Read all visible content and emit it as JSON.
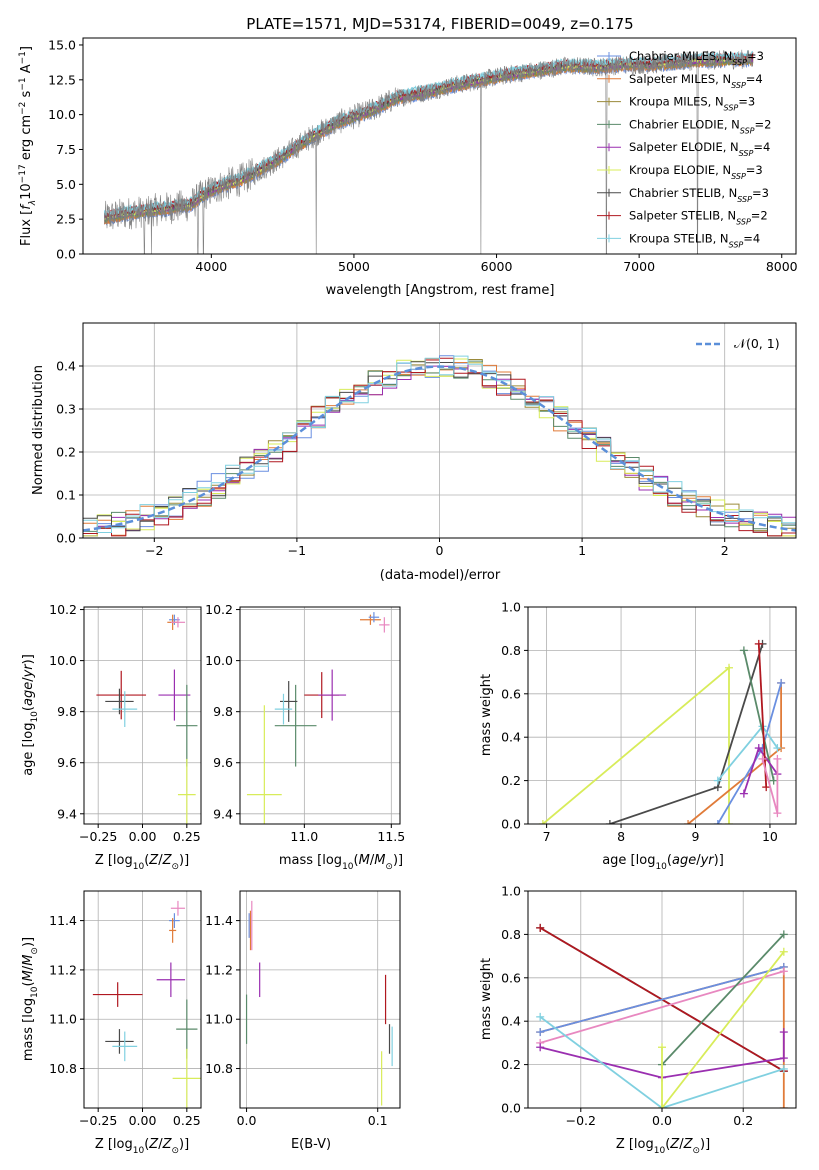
{
  "title": "PLATE=1571, MJD=53174, FIBERID=0049, z=0.175",
  "colors": {
    "Chabrier MILES": "#6a8fe0",
    "Salpeter MILES": "#e07b39",
    "Kroupa MILES": "#9a8a3a",
    "Chabrier ELODIE": "#5a8a6a",
    "Salpeter ELODIE": "#9a2fb0",
    "Kroupa ELODIE": "#d8ec5a",
    "Chabrier STELIB": "#4a4a4a",
    "Salpeter STELIB": "#b01820",
    "Kroupa STELIB": "#80d0e0",
    "pink": "#e888c0",
    "observed": "#808080",
    "normal": "#5b8fd9",
    "grid": "#b0b0b0"
  },
  "legend_spectrum": [
    {
      "pre": "Chabrier MILES, N",
      "sub": "SSP",
      "post": "=3"
    },
    {
      "pre": "Salpeter MILES, N",
      "sub": "SSP",
      "post": "=4"
    },
    {
      "pre": "Kroupa MILES, N",
      "sub": "SSP",
      "post": "=3"
    },
    {
      "pre": "Chabrier ELODIE, N",
      "sub": "SSP",
      "post": "=2"
    },
    {
      "pre": "Salpeter ELODIE, N",
      "sub": "SSP",
      "post": "=4"
    },
    {
      "pre": "Kroupa ELODIE, N",
      "sub": "SSP",
      "post": "=3"
    },
    {
      "pre": "Chabrier STELIB, N",
      "sub": "SSP",
      "post": "=3"
    },
    {
      "pre": "Salpeter STELIB, N",
      "sub": "SSP",
      "post": "=2"
    },
    {
      "pre": "Kroupa STELIB, N",
      "sub": "SSP",
      "post": "=4"
    }
  ],
  "legend_normal": "𝒩(0, 1)",
  "chart_data": [
    {
      "id": "spectrum",
      "type": "line",
      "xlabel": "wavelength [Angstrom, rest frame]",
      "ylabel": "Flux [f_λ 10^-17 erg cm^-2 s^-1 A^-1]",
      "xlim": [
        3100,
        8100
      ],
      "ylim": [
        0,
        15.5
      ],
      "xticks": [
        4000,
        5000,
        6000,
        7000,
        8000
      ],
      "yticks": [
        0.0,
        2.5,
        5.0,
        7.5,
        10.0,
        12.5,
        15.0
      ],
      "ytick_labels": [
        "0.0",
        "2.5",
        "5.0",
        "7.5",
        "10.0",
        "12.5",
        "15.0"
      ],
      "x_range": [
        3250,
        7800
      ],
      "continuum": [
        [
          3250,
          2.6
        ],
        [
          3400,
          2.9
        ],
        [
          3550,
          3.1
        ],
        [
          3700,
          3.3
        ],
        [
          3850,
          3.5
        ],
        [
          3950,
          4.3
        ],
        [
          4050,
          4.8
        ],
        [
          4200,
          5.3
        ],
        [
          4300,
          5.8
        ],
        [
          4500,
          7.0
        ],
        [
          4700,
          8.4
        ],
        [
          4900,
          9.5
        ],
        [
          5100,
          10.2
        ],
        [
          5300,
          11.2
        ],
        [
          5500,
          11.6
        ],
        [
          5700,
          12.1
        ],
        [
          5900,
          12.5
        ],
        [
          6100,
          12.9
        ],
        [
          6300,
          13.2
        ],
        [
          6500,
          13.5
        ],
        [
          6700,
          13.4
        ],
        [
          6900,
          13.6
        ],
        [
          7100,
          13.6
        ],
        [
          7300,
          13.8
        ],
        [
          7500,
          13.9
        ],
        [
          7800,
          14.0
        ]
      ],
      "deep_lines": [
        3530,
        3580,
        3905,
        3945,
        4735,
        5890,
        6770,
        7410
      ],
      "series": [
        "Chabrier MILES",
        "Salpeter MILES",
        "Kroupa MILES",
        "Chabrier ELODIE",
        "Salpeter ELODIE",
        "Kroupa ELODIE",
        "Chabrier STELIB",
        "Salpeter STELIB",
        "Kroupa STELIB"
      ]
    },
    {
      "id": "residual_hist",
      "type": "line",
      "xlabel": "(data-model)/error",
      "ylabel": "Normed distribution",
      "xlim": [
        -2.5,
        2.5
      ],
      "ylim": [
        0,
        0.5
      ],
      "xticks": [
        -2,
        -1,
        0,
        1,
        2
      ],
      "xtick_labels": [
        "−2",
        "−1",
        "0",
        "1",
        "2"
      ],
      "yticks": [
        0.0,
        0.1,
        0.2,
        0.3,
        0.4
      ],
      "ytick_labels": [
        "0.0",
        "0.1",
        "0.2",
        "0.3",
        "0.4"
      ],
      "bin_width": 0.1,
      "reference": "normal(0,1)"
    },
    {
      "id": "age_vs_Z",
      "type": "scatter",
      "xlabel": "Z [log10(Z/Z⊙)]",
      "ylabel": "age [log10(age/yr)]",
      "xlim": [
        -0.33,
        0.33
      ],
      "ylim": [
        9.36,
        10.21
      ],
      "xticks": [
        -0.25,
        0.0,
        0.25
      ],
      "xtick_labels": [
        "−0.25",
        "0.00",
        "0.25"
      ],
      "yticks": [
        9.4,
        9.6,
        9.8,
        10.0,
        10.2
      ],
      "ytick_labels": [
        "9.4",
        "9.6",
        "9.8",
        "10.0",
        "10.2"
      ],
      "points": [
        {
          "x": -0.12,
          "y": 9.865,
          "xerr": 0.14,
          "yerr": 0.095,
          "c": "Salpeter STELIB"
        },
        {
          "x": -0.13,
          "y": 9.84,
          "xerr": 0.08,
          "yerr": 0.05,
          "c": "Chabrier STELIB"
        },
        {
          "x": -0.1,
          "y": 9.81,
          "xerr": 0.07,
          "yerr": 0.07,
          "c": "Kroupa STELIB"
        },
        {
          "x": 0.18,
          "y": 9.865,
          "xerr": 0.09,
          "yerr": 0.1,
          "c": "Salpeter ELODIE"
        },
        {
          "x": 0.25,
          "y": 9.745,
          "xerr": 0.06,
          "yerr": 0.16,
          "c": "Chabrier ELODIE"
        },
        {
          "x": 0.25,
          "y": 9.475,
          "xerr": 0.05,
          "yerr": 0.14,
          "c": "Kroupa ELODIE"
        },
        {
          "x": 0.18,
          "y": 10.16,
          "xerr": 0.03,
          "yerr": 0.02,
          "c": "Chabrier MILES"
        },
        {
          "x": 0.17,
          "y": 10.15,
          "xerr": 0.03,
          "yerr": 0.03,
          "c": "Salpeter MILES"
        },
        {
          "x": 0.2,
          "y": 10.15,
          "xerr": 0.04,
          "yerr": 0.02,
          "c": "pink"
        }
      ]
    },
    {
      "id": "age_vs_mass",
      "type": "scatter",
      "xlabel": "mass [log10(M/M⊙)]",
      "ylabel": "",
      "xlim": [
        10.63,
        11.55
      ],
      "ylim": [
        9.36,
        10.21
      ],
      "xticks": [
        11.0,
        11.5
      ],
      "xtick_labels": [
        "11.0",
        "11.5"
      ],
      "yticks": [
        9.4,
        9.6,
        9.8,
        10.0,
        10.2
      ],
      "ytick_labels": [
        "9.4",
        "9.6",
        "9.8",
        "10.0",
        "10.2"
      ],
      "points": [
        {
          "x": 10.77,
          "y": 9.475,
          "xerr": 0.1,
          "yerr": 0.35,
          "c": "Kroupa ELODIE"
        },
        {
          "x": 10.95,
          "y": 9.745,
          "xerr": 0.12,
          "yerr": 0.16,
          "c": "Chabrier ELODIE"
        },
        {
          "x": 10.91,
          "y": 9.84,
          "xerr": 0.05,
          "yerr": 0.08,
          "c": "Chabrier STELIB"
        },
        {
          "x": 10.88,
          "y": 9.81,
          "xerr": 0.05,
          "yerr": 0.06,
          "c": "Kroupa STELIB"
        },
        {
          "x": 11.1,
          "y": 9.865,
          "xerr": 0.1,
          "yerr": 0.09,
          "c": "Salpeter STELIB"
        },
        {
          "x": 11.16,
          "y": 9.865,
          "xerr": 0.08,
          "yerr": 0.1,
          "c": "Salpeter ELODIE"
        },
        {
          "x": 11.38,
          "y": 10.16,
          "xerr": 0.06,
          "yerr": 0.02,
          "c": "Salpeter MILES"
        },
        {
          "x": 11.4,
          "y": 10.17,
          "xerr": 0.03,
          "yerr": 0.02,
          "c": "Chabrier MILES"
        },
        {
          "x": 11.46,
          "y": 10.14,
          "xerr": 0.03,
          "yerr": 0.03,
          "c": "pink"
        }
      ]
    },
    {
      "id": "weight_vs_age",
      "type": "line",
      "xlabel": "age [log10(age/yr)]",
      "ylabel": "mass weight",
      "xlim": [
        6.75,
        10.35
      ],
      "ylim": [
        0,
        1
      ],
      "xticks": [
        7,
        8,
        9,
        10
      ],
      "xtick_labels": [
        "7",
        "8",
        "9",
        "10"
      ],
      "yticks": [
        0.0,
        0.2,
        0.4,
        0.6,
        0.8,
        1.0
      ],
      "ytick_labels": [
        "0.0",
        "0.2",
        "0.4",
        "0.6",
        "0.8",
        "1.0"
      ],
      "series": [
        {
          "c": "Kroupa ELODIE",
          "pts": [
            [
              6.95,
              0.0
            ],
            [
              9.45,
              0.72
            ],
            [
              9.45,
              0.0
            ]
          ]
        },
        {
          "c": "Chabrier STELIB",
          "pts": [
            [
              7.85,
              0.0
            ],
            [
              9.3,
              0.17
            ],
            [
              9.9,
              0.83
            ]
          ]
        },
        {
          "c": "Salpeter MILES",
          "pts": [
            [
              8.9,
              0.0
            ],
            [
              10.15,
              0.35
            ],
            [
              10.15,
              0.65
            ]
          ]
        },
        {
          "c": "Chabrier MILES",
          "pts": [
            [
              9.3,
              0.0
            ],
            [
              9.9,
              0.35
            ],
            [
              10.15,
              0.65
            ]
          ]
        },
        {
          "c": "Kroupa STELIB",
          "pts": [
            [
              9.3,
              0.2
            ],
            [
              9.9,
              0.45
            ],
            [
              10.1,
              0.35
            ]
          ]
        },
        {
          "c": "Chabrier ELODIE",
          "pts": [
            [
              9.65,
              0.8
            ],
            [
              10.05,
              0.2
            ]
          ]
        },
        {
          "c": "Salpeter ELODIE",
          "pts": [
            [
              9.65,
              0.14
            ],
            [
              9.85,
              0.35
            ],
            [
              10.1,
              0.23
            ]
          ]
        },
        {
          "c": "Salpeter STELIB",
          "pts": [
            [
              9.85,
              0.83
            ],
            [
              9.95,
              0.17
            ]
          ]
        },
        {
          "c": "pink",
          "pts": [
            [
              9.9,
              0.3
            ],
            [
              10.1,
              0.05
            ],
            [
              10.1,
              0.3
            ]
          ]
        }
      ]
    },
    {
      "id": "mass_vs_Z",
      "type": "scatter",
      "xlabel": "Z [log10(Z/Z⊙)]",
      "ylabel": "mass [log10(M/M⊙)]",
      "xlim": [
        -0.33,
        0.33
      ],
      "ylim": [
        10.64,
        11.52
      ],
      "xticks": [
        -0.25,
        0.0,
        0.25
      ],
      "xtick_labels": [
        "−0.25",
        "0.00",
        "0.25"
      ],
      "yticks": [
        10.8,
        11.0,
        11.2,
        11.4
      ],
      "ytick_labels": [
        "10.8",
        "11.0",
        "11.2",
        "11.4"
      ],
      "points": [
        {
          "x": -0.14,
          "y": 11.1,
          "xerr": 0.14,
          "yerr": 0.05,
          "c": "Salpeter STELIB"
        },
        {
          "x": -0.13,
          "y": 10.91,
          "xerr": 0.08,
          "yerr": 0.05,
          "c": "Chabrier STELIB"
        },
        {
          "x": -0.1,
          "y": 10.89,
          "xerr": 0.07,
          "yerr": 0.06,
          "c": "Kroupa STELIB"
        },
        {
          "x": 0.16,
          "y": 11.16,
          "xerr": 0.08,
          "yerr": 0.07,
          "c": "Salpeter ELODIE"
        },
        {
          "x": 0.25,
          "y": 10.96,
          "xerr": 0.06,
          "yerr": 0.12,
          "c": "Chabrier ELODIE"
        },
        {
          "x": 0.25,
          "y": 10.76,
          "xerr": 0.08,
          "yerr": 0.12,
          "c": "Kroupa ELODIE"
        },
        {
          "x": 0.18,
          "y": 11.4,
          "xerr": 0.03,
          "yerr": 0.03,
          "c": "Chabrier MILES"
        },
        {
          "x": 0.17,
          "y": 11.36,
          "xerr": 0.02,
          "yerr": 0.05,
          "c": "Salpeter MILES"
        },
        {
          "x": 0.2,
          "y": 11.45,
          "xerr": 0.04,
          "yerr": 0.03,
          "c": "pink"
        }
      ]
    },
    {
      "id": "mass_vs_ebv",
      "type": "scatter",
      "xlabel": "E(B-V)",
      "ylabel": "",
      "xlim": [
        -0.005,
        0.117
      ],
      "ylim": [
        10.64,
        11.52
      ],
      "xticks": [
        0.0,
        0.1
      ],
      "xtick_labels": [
        "0.0",
        "0.1"
      ],
      "yticks": [
        10.8,
        11.0,
        11.2,
        11.4
      ],
      "ytick_labels": [
        "10.8",
        "11.0",
        "11.2",
        "11.4"
      ],
      "points": [
        {
          "x": 0.0,
          "y": 11.0,
          "xerr": 0.0,
          "yerr": 0.1,
          "c": "Chabrier ELODIE"
        },
        {
          "x": 0.002,
          "y": 11.38,
          "xerr": 0.0,
          "yerr": 0.05,
          "c": "Chabrier MILES"
        },
        {
          "x": 0.003,
          "y": 11.36,
          "xerr": 0.0,
          "yerr": 0.08,
          "c": "Salpeter MILES"
        },
        {
          "x": 0.004,
          "y": 11.38,
          "xerr": 0.0,
          "yerr": 0.1,
          "c": "pink"
        },
        {
          "x": 0.01,
          "y": 11.16,
          "xerr": 0.0,
          "yerr": 0.07,
          "c": "Salpeter ELODIE"
        },
        {
          "x": 0.103,
          "y": 10.76,
          "xerr": 0.0,
          "yerr": 0.11,
          "c": "Kroupa ELODIE"
        },
        {
          "x": 0.106,
          "y": 11.08,
          "xerr": 0.0,
          "yerr": 0.1,
          "c": "Salpeter STELIB"
        },
        {
          "x": 0.109,
          "y": 10.92,
          "xerr": 0.0,
          "yerr": 0.06,
          "c": "Chabrier STELIB"
        },
        {
          "x": 0.111,
          "y": 10.89,
          "xerr": 0.0,
          "yerr": 0.08,
          "c": "Kroupa STELIB"
        }
      ]
    },
    {
      "id": "weight_vs_Z",
      "type": "line",
      "xlabel": "Z [log10(Z/Z⊙)]",
      "ylabel": "mass weight",
      "xlim": [
        -0.33,
        0.33
      ],
      "ylim": [
        0,
        1
      ],
      "xticks": [
        -0.2,
        0.0,
        0.2
      ],
      "xtick_labels": [
        "−0.2",
        "0.0",
        "0.2"
      ],
      "yticks": [
        0.0,
        0.2,
        0.4,
        0.6,
        0.8,
        1.0
      ],
      "ytick_labels": [
        "0.0",
        "0.2",
        "0.4",
        "0.6",
        "0.8",
        "1.0"
      ],
      "series": [
        {
          "c": "Chabrier STELIB",
          "pts": [
            [
              -0.3,
              0.83
            ],
            [
              0.3,
              0.17
            ]
          ]
        },
        {
          "c": "Salpeter STELIB",
          "pts": [
            [
              -0.3,
              0.83
            ],
            [
              0.3,
              0.17
            ]
          ]
        },
        {
          "c": "Salpeter MILES",
          "pts": [
            [
              -0.3,
              0.35
            ],
            [
              0.3,
              0.65
            ],
            [
              0.3,
              0.0
            ]
          ]
        },
        {
          "c": "Chabrier MILES",
          "pts": [
            [
              -0.3,
              0.35
            ],
            [
              0.3,
              0.65
            ]
          ]
        },
        {
          "c": "pink",
          "pts": [
            [
              -0.3,
              0.3
            ],
            [
              0.3,
              0.63
            ]
          ]
        },
        {
          "c": "Salpeter ELODIE",
          "pts": [
            [
              -0.3,
              0.28
            ],
            [
              0.0,
              0.14
            ],
            [
              0.3,
              0.23
            ],
            [
              0.3,
              0.35
            ]
          ]
        },
        {
          "c": "Kroupa STELIB",
          "pts": [
            [
              -0.3,
              0.42
            ],
            [
              0.0,
              0.0
            ],
            [
              0.3,
              0.18
            ]
          ]
        },
        {
          "c": "Chabrier ELODIE",
          "pts": [
            [
              0.0,
              0.2
            ],
            [
              0.3,
              0.8
            ]
          ]
        },
        {
          "c": "Kroupa ELODIE",
          "pts": [
            [
              0.0,
              0.28
            ],
            [
              0.0,
              0.0
            ],
            [
              0.3,
              0.72
            ]
          ]
        }
      ]
    }
  ]
}
